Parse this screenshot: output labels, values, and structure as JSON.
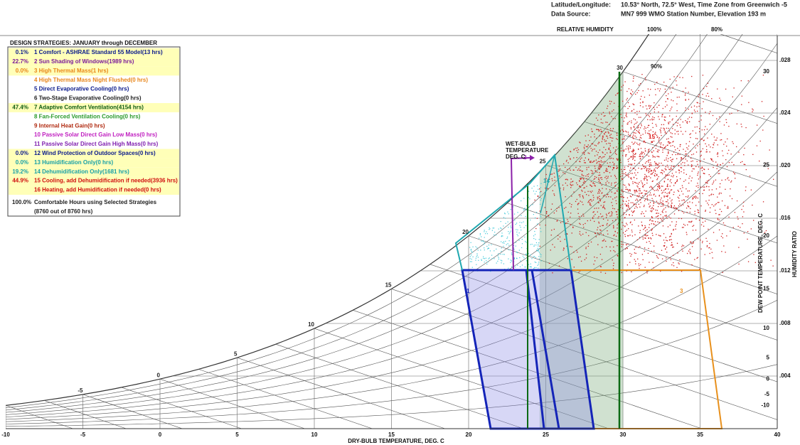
{
  "header": {
    "location_label": "Latitude/Longitude:",
    "location_value": "10.53° North, 72.5° West, Time Zone from Greenwich -5",
    "source_label": "Data Source:",
    "source_value": "MN7     999 WMO Station Number, Elevation 193 m"
  },
  "strategies": {
    "title": "DESIGN STRATEGIES: JANUARY through DECEMBER",
    "items": [
      {
        "percent": "0.1%",
        "label": "1 Comfort - ASHRAE Standard 55 Model(13 hrs)",
        "color": "#0a1a8c",
        "highlight": true
      },
      {
        "percent": "22.7%",
        "label": "2 Sun Shading of Windows(1989 hrs)",
        "color": "#7a1a9a",
        "highlight": true
      },
      {
        "percent": "0.0%",
        "label": "3 High Thermal Mass(1 hrs)",
        "color": "#e8861a",
        "highlight": true
      },
      {
        "label": "4 High Thermal Mass Night Flushed(0 hrs)",
        "color": "#e8861a",
        "highlight": false
      },
      {
        "label": "5 Direct Evaporative Cooling(0 hrs)",
        "color": "#0a1a8c",
        "highlight": false
      },
      {
        "label": "6 Two-Stage Evaporative Cooling(0 hrs)",
        "color": "#222222",
        "highlight": false
      },
      {
        "percent": "47.4%",
        "label": "7 Adaptive Comfort Ventilation(4154 hrs)",
        "color": "#0c5a12",
        "highlight": true
      },
      {
        "label": "8 Fan-Forced Ventilation Cooling(0 hrs)",
        "color": "#2a9a2a",
        "highlight": false
      },
      {
        "label": "9 Internal Heat Gain(0 hrs)",
        "color": "#b02a10",
        "highlight": false
      },
      {
        "label": "10 Passive Solar Direct Gain Low Mass(0 hrs)",
        "color": "#c020c0",
        "highlight": false
      },
      {
        "label": "11 Passive Solar Direct Gain High Mass(0 hrs)",
        "color": "#8020b0",
        "highlight": false
      },
      {
        "percent": "0.0%",
        "label": "12 Wind Protection of Outdoor Spaces(0 hrs)",
        "color": "#0a1a8c",
        "highlight": true
      },
      {
        "percent": "0.0%",
        "label": "13 Humidification Only(0 hrs)",
        "color": "#18a0a8",
        "highlight": true
      },
      {
        "percent": "19.2%",
        "label": "14 Dehumidification Only(1681 hrs)",
        "color": "#18a0a8",
        "highlight": true
      },
      {
        "percent": "44.9%",
        "label": "15 Cooling, add Dehumidification if needed(3936 hrs)",
        "color": "#d01010",
        "highlight": true
      },
      {
        "label": "16 Heating, add Humidification if needed(0 hrs)",
        "color": "#d01010",
        "highlight": true
      }
    ],
    "total_percent": "100.0%",
    "total_label": "Comfortable Hours using Selected Strategies",
    "total_hours": "(8760 out of 8760 hrs)"
  },
  "chart": {
    "rh_header": "RELATIVE HUMIDITY",
    "rh_100": "100%",
    "rh_80": "80%",
    "rh_90": "90%",
    "wet_bulb_title": [
      "WET-BULB",
      "TEMPERATURE",
      "DEG. C"
    ],
    "wet_bulb_labels": [
      -5,
      0,
      5,
      10,
      15,
      20,
      25,
      30
    ],
    "x_axis_title": "DRY-BULB TEMPERATURE, DEG. C",
    "x_ticks": [
      -10,
      -5,
      0,
      5,
      10,
      15,
      20,
      25,
      30,
      35,
      40
    ],
    "dew_point_title": "DEW POINT TEMPERATURE, DEG. C",
    "dew_point_ticks": [
      30,
      25,
      20,
      15,
      10,
      5,
      0,
      -5,
      -10
    ],
    "humidity_ratio_title": "HUMIDITY RATIO",
    "humidity_ratio_ticks": [
      {
        "value": 0.028,
        "label": ".028"
      },
      {
        "value": 0.024,
        "label": ".024"
      },
      {
        "value": 0.02,
        "label": ".020"
      },
      {
        "value": 0.016,
        "label": ".016"
      },
      {
        "value": 0.012,
        "label": ".012"
      },
      {
        "value": 0.008,
        "label": ".008"
      },
      {
        "value": 0.004,
        "label": ".004"
      }
    ],
    "zone_labels": {
      "zone_1": "1",
      "zone_2": "2",
      "zone_3": "3",
      "zone_14": "14",
      "zone_15": "15"
    }
  }
}
